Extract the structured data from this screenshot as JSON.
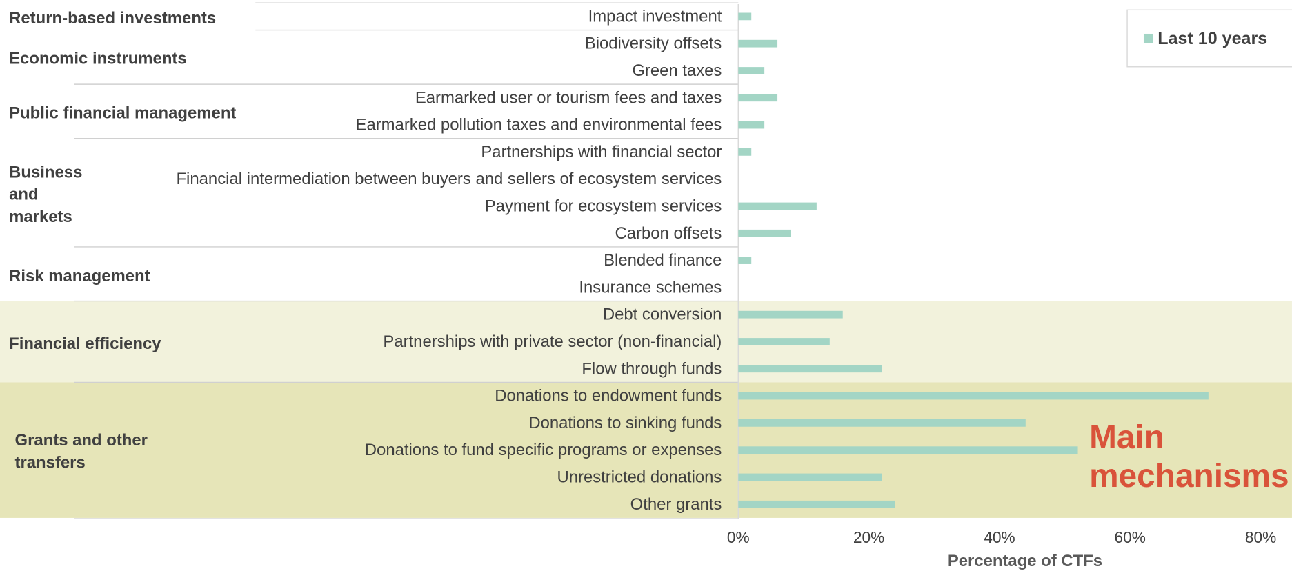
{
  "chart_data": {
    "type": "bar",
    "orientation": "horizontal",
    "series_name": "Last 10 years",
    "color": "#a3d5c5",
    "groups": [
      {
        "name": "Return-based investments",
        "categories": [
          "Impact investment"
        ],
        "values": [
          2
        ]
      },
      {
        "name": "Economic instruments",
        "categories": [
          "Biodiversity offsets",
          "Green taxes"
        ],
        "values": [
          6,
          4
        ]
      },
      {
        "name": "Public financial management",
        "categories": [
          "Earmarked user or tourism fees and taxes",
          "Earmarked pollution taxes and environmental fees"
        ],
        "values": [
          6,
          4
        ]
      },
      {
        "name": "Business and markets",
        "categories": [
          "Partnerships with financial sector",
          "Financial intermediation between buyers and sellers of ecosystem services",
          "Payment for ecosystem services",
          "Carbon offsets"
        ],
        "values": [
          2,
          0,
          12,
          8
        ]
      },
      {
        "name": "Risk management",
        "categories": [
          "Blended finance",
          "Insurance schemes"
        ],
        "values": [
          2,
          0
        ]
      },
      {
        "name": "Financial efficiency",
        "categories": [
          "Debt conversion",
          "Partnerships with private sector (non-financial)",
          "Flow through funds"
        ],
        "values": [
          16,
          14,
          22
        ],
        "background": "#f2f2dc"
      },
      {
        "name": "Grants and other transfers",
        "categories": [
          "Donations to endowment funds",
          "Donations to sinking funds",
          "Donations to fund specific programs or expenses",
          "Unrestricted donations",
          "Other grants"
        ],
        "values": [
          72,
          44,
          52,
          22,
          24
        ],
        "background": "#e6e5b8"
      }
    ],
    "xlim": [
      0,
      80
    ],
    "xticks": [
      {
        "value": 0,
        "label": "0%"
      },
      {
        "value": 20,
        "label": "20%"
      },
      {
        "value": 40,
        "label": "40%"
      },
      {
        "value": 60,
        "label": "60%"
      },
      {
        "value": 80,
        "label": "80%"
      }
    ],
    "xlabel": "Percentage of CTFs",
    "annotation": "Main mechanisms",
    "legend_position": "top-right"
  }
}
